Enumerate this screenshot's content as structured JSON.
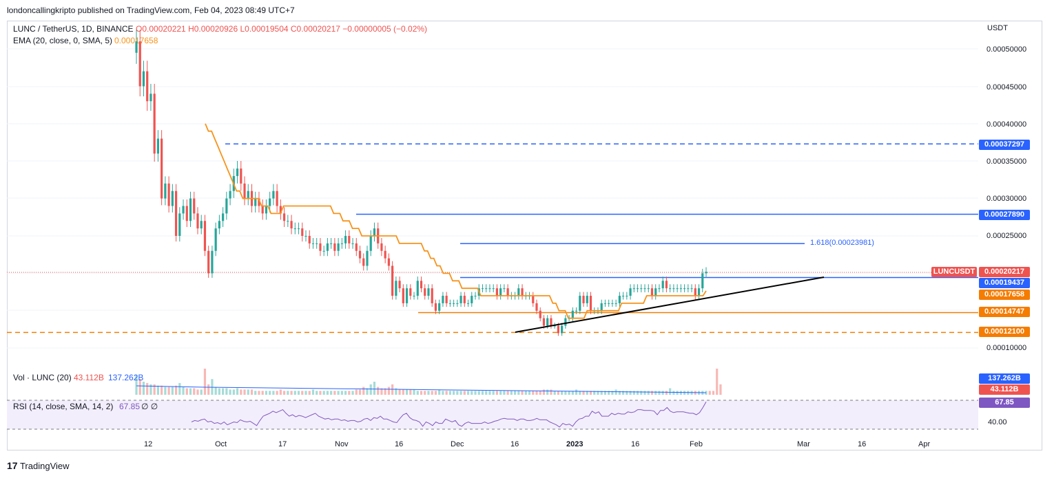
{
  "publisher": {
    "text": "londoncallingkripto published on TradingView.com, Feb 04, 2023 08:49 UTC+7"
  },
  "header": {
    "symbol": "LUNC / TetherUS, 1D, BINANCE",
    "ohlc": "O0.00020221 H0.00020926 L0.00019504 C0.00020217 −0.00000005 (−0.02%)",
    "ema_label": "EMA (20, close, 0, SMA, 5)",
    "ema_value": "0.00017658"
  },
  "price_axis": {
    "unit": "USDT",
    "ticks": [
      "0.00050000",
      "0.00045000",
      "0.00040000",
      "0.00035000",
      "0.00030000",
      "0.00025000",
      "0.00010000"
    ]
  },
  "price_tags": {
    "symbol_tag": "LUNCUSDT",
    "last_price": "0.00020217",
    "level_37297": "0.00037297",
    "level_27890": "0.00027890",
    "level_19437": "0.00019437",
    "ema_value": "0.00017658",
    "level_14747": "0.00014747",
    "level_12100": "0.00012100"
  },
  "fib_label": "1.618(0.00023981)",
  "volume": {
    "label": "Vol · LUNC (20)",
    "value": "43.112B",
    "sma_value": "137.262B",
    "tag_sma": "137.262B",
    "tag_value": "43.112B"
  },
  "rsi": {
    "label": "RSI (14, close, SMA, 14, 2)",
    "value": "67.85",
    "extra": "∅ ∅",
    "tag": "67.85",
    "tick": "40.00"
  },
  "time_axis": {
    "ticks": [
      "12",
      "Oct",
      "17",
      "Nov",
      "16",
      "Dec",
      "16",
      "2023",
      "16",
      "Feb",
      "Mar",
      "16",
      "Apr"
    ]
  },
  "footer": {
    "logo_text": "TradingView"
  },
  "colors": {
    "up": "#26a69a",
    "down": "#ef5350",
    "ema": "#f7931a",
    "blue_line": "#2962ff",
    "orange_line": "#f57c00"
  },
  "chart_data": {
    "type": "candlestick",
    "symbol": "LUNC / TetherUS",
    "timeframe": "1D",
    "ylim": [
      0.0001,
      0.00052
    ],
    "closes": [
      0.00051,
      0.00045,
      0.00047,
      0.00043,
      0.00044,
      0.00036,
      0.00038,
      0.0003,
      0.00032,
      0.00029,
      0.00031,
      0.00025,
      0.00028,
      0.00029,
      0.00027,
      0.0003,
      0.00028,
      0.00026,
      0.00027,
      0.00023,
      0.0002,
      0.00023,
      0.00026,
      0.00027,
      0.00028,
      0.0003,
      0.00031,
      0.00033,
      0.00034,
      0.00032,
      0.0003,
      0.00031,
      0.00029,
      0.0003,
      0.00029,
      0.00028,
      0.00029,
      0.0003,
      0.00031,
      0.00029,
      0.00028,
      0.00027,
      0.00027,
      0.00026,
      0.00026,
      0.00026,
      0.00025,
      0.00025,
      0.00024,
      0.00024,
      0.00024,
      0.00023,
      0.00023,
      0.00024,
      0.00024,
      0.00023,
      0.00024,
      0.00024,
      0.00025,
      0.00024,
      0.00024,
      0.00023,
      0.00022,
      0.00021,
      0.00023,
      0.00025,
      0.00026,
      0.00024,
      0.00023,
      0.00022,
      0.00021,
      0.00017,
      0.00019,
      0.00018,
      0.00016,
      0.00018,
      0.00017,
      0.00017,
      0.00019,
      0.00018,
      0.00017,
      0.00018,
      0.00016,
      0.00015,
      0.00016,
      0.00017,
      0.00016,
      0.00016,
      0.00016,
      0.00016,
      0.00017,
      0.00016,
      0.00016,
      0.00017,
      0.00017,
      0.00018,
      0.00018,
      0.00018,
      0.00018,
      0.00018,
      0.00017,
      0.00018,
      0.00018,
      0.00017,
      0.00017,
      0.00017,
      0.00018,
      0.00017,
      0.00017,
      0.00017,
      0.00016,
      0.00015,
      0.00014,
      0.00013,
      0.00014,
      0.00013,
      0.00013,
      0.00012,
      0.00013,
      0.00014,
      0.00014,
      0.00015,
      0.00015,
      0.00017,
      0.00016,
      0.00017,
      0.00015,
      0.00015,
      0.00015,
      0.00016,
      0.00016,
      0.00016,
      0.00016,
      0.00016,
      0.00017,
      0.00017,
      0.00017,
      0.00018,
      0.00018,
      0.00018,
      0.00018,
      0.00018,
      0.00018,
      0.00017,
      0.00018,
      0.00018,
      0.00019,
      0.00018,
      0.00018,
      0.00018,
      0.00018,
      0.00018,
      0.00018,
      0.00018,
      0.00018,
      0.00017,
      0.00018,
      0.0002,
      0.00020217
    ],
    "ema20": [
      0.0004,
      0.00039,
      0.00039,
      0.00038,
      0.00037,
      0.00036,
      0.00035,
      0.00034,
      0.00033,
      0.00032,
      0.00031,
      0.00031,
      0.0003,
      0.0003,
      0.0003,
      0.0003,
      0.0003,
      0.0003,
      0.00029,
      0.00029,
      0.00029,
      0.00028,
      0.00028,
      0.00028,
      0.00028,
      0.00029,
      0.00029,
      0.00029,
      0.00029,
      0.00029,
      0.00029,
      0.00029,
      0.00029,
      0.00029,
      0.00029,
      0.00029,
      0.00029,
      0.00029,
      0.00029,
      0.00029,
      0.00029,
      0.00028,
      0.00028,
      0.00028,
      0.00027,
      0.00027,
      0.00027,
      0.00026,
      0.00026,
      0.00026,
      0.00025,
      0.00025,
      0.00025,
      0.00025,
      0.00025,
      0.00025,
      0.00025,
      0.00025,
      0.00025,
      0.00025,
      0.00025,
      0.00025,
      0.00024,
      0.00024,
      0.00024,
      0.00024,
      0.00024,
      0.00024,
      0.00024,
      0.00024,
      0.00023,
      0.00023,
      0.00022,
      0.00022,
      0.00021,
      0.00021,
      0.0002,
      0.0002,
      0.0002,
      0.00019,
      0.00019,
      0.00019,
      0.00018,
      0.00018,
      0.00018,
      0.00018,
      0.00018,
      0.00018,
      0.00017,
      0.00017,
      0.00017,
      0.00017,
      0.00017,
      0.00017,
      0.00017,
      0.00017,
      0.00017,
      0.00017,
      0.00017,
      0.00017,
      0.00017,
      0.00017,
      0.00017,
      0.00017,
      0.00017,
      0.00017,
      0.00017,
      0.00017,
      0.00017,
      0.00017,
      0.00017,
      0.00016,
      0.00016,
      0.00015,
      0.00015,
      0.00015,
      0.00014,
      0.00014,
      0.00014,
      0.00014,
      0.00014,
      0.00014,
      0.00015,
      0.00015,
      0.00015,
      0.00015,
      0.00015,
      0.00015,
      0.00015,
      0.00015,
      0.00015,
      0.00015,
      0.00015,
      0.00016,
      0.00016,
      0.00016,
      0.00016,
      0.00016,
      0.00016,
      0.00016,
      0.00016,
      0.00017,
      0.00017,
      0.00017,
      0.00017,
      0.00017,
      0.00017,
      0.00017,
      0.00017,
      0.00017,
      0.00017,
      0.00017,
      0.00017,
      0.00017,
      0.00017,
      0.00017,
      0.00017,
      0.00017,
      0.00017,
      0.00017,
      0.00017658
    ],
    "volume": [
      15,
      12,
      10,
      9,
      8,
      8,
      7,
      7,
      6,
      6,
      6,
      7,
      9,
      6,
      5,
      5,
      5,
      4,
      4,
      20,
      8,
      12,
      6,
      5,
      5,
      5,
      4,
      4,
      5,
      4,
      4,
      4,
      4,
      3,
      3,
      3,
      3,
      3,
      3,
      3,
      4,
      3,
      3,
      3,
      3,
      3,
      3,
      3,
      3,
      4,
      3,
      3,
      3,
      3,
      3,
      3,
      3,
      3,
      3,
      3,
      3,
      4,
      4,
      6,
      5,
      8,
      10,
      6,
      5,
      5,
      6,
      8,
      5,
      4,
      4,
      4,
      4,
      4,
      3,
      3,
      3,
      3,
      3,
      3,
      4,
      3,
      3,
      3,
      3,
      3,
      3,
      3,
      3,
      3,
      3,
      3,
      3,
      3,
      3,
      3,
      3,
      3,
      3,
      3,
      3,
      3,
      3,
      3,
      3,
      3,
      3,
      3,
      3,
      4,
      4,
      4,
      3,
      3,
      3,
      3,
      3,
      3,
      4,
      3,
      3,
      3,
      3,
      3,
      3,
      3,
      3,
      3,
      3,
      4,
      3,
      3,
      3,
      3,
      3,
      3,
      3,
      3,
      3,
      3,
      3,
      3,
      3,
      3,
      5,
      3,
      3,
      3,
      3,
      3,
      3,
      3,
      3,
      3,
      3,
      3,
      3,
      20,
      8
    ],
    "rsi": [
      40,
      42,
      41,
      43,
      44,
      40,
      41,
      38,
      39,
      37,
      40,
      36,
      38,
      40,
      39,
      43,
      41,
      40,
      41,
      38,
      35,
      42,
      48,
      50,
      52,
      55,
      53,
      55,
      57,
      52,
      48,
      50,
      47,
      49,
      48,
      46,
      48,
      50,
      52,
      48,
      46,
      44,
      45,
      43,
      44,
      44,
      42,
      43,
      41,
      42,
      42,
      40,
      41,
      44,
      45,
      42,
      46,
      45,
      48,
      44,
      44,
      42,
      40,
      39,
      45,
      50,
      52,
      46,
      43,
      42,
      40,
      34,
      40,
      38,
      35,
      40,
      38,
      38,
      44,
      42,
      40,
      42,
      36,
      34,
      38,
      40,
      38,
      38,
      38,
      38,
      40,
      38,
      39,
      41,
      42,
      44,
      45,
      44,
      44,
      44,
      42,
      44,
      44,
      42,
      42,
      43,
      45,
      43,
      43,
      43,
      40,
      38,
      36,
      33,
      38,
      36,
      37,
      34,
      40,
      44,
      45,
      48,
      48,
      55,
      52,
      54,
      48,
      48,
      48,
      52,
      50,
      52,
      51,
      51,
      54,
      53,
      54,
      57,
      57,
      56,
      56,
      56,
      55,
      50,
      56,
      56,
      60,
      55,
      53,
      54,
      54,
      54,
      53,
      52,
      52,
      50,
      53,
      60,
      67.85
    ],
    "levels": [
      0.00037297,
      0.0002789,
      0.00023981,
      0.00019437,
      0.00014747,
      0.000121
    ]
  }
}
